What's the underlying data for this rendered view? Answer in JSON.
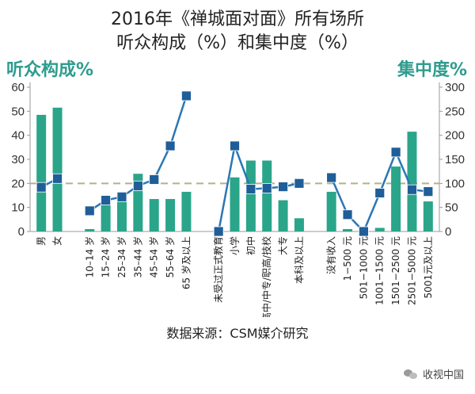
{
  "title_line1": "2016年《禅城面对面》所有场所",
  "title_line2": "听众构成（%）和集中度（%）",
  "left_axis_title": "听众构成%",
  "right_axis_title": "集中度%",
  "source": "数据来源：CSM媒介研究",
  "watermark": "收视中国",
  "watermark_icon": "wechat-icon",
  "colors": {
    "bar": "#2aa58a",
    "line": "#2a77b5",
    "marker": "#1f5e98",
    "axis_title": "#2e9c8e",
    "reference": "#b5b08a"
  },
  "chart_data": {
    "type": "bar+line",
    "left_axis": {
      "ylim": [
        0,
        60
      ],
      "ticks": [
        0,
        10,
        20,
        30,
        40,
        50,
        60
      ]
    },
    "right_axis": {
      "ylim": [
        0,
        300
      ],
      "ticks": [
        0,
        50,
        100,
        150,
        200,
        250,
        300
      ]
    },
    "reference_line": {
      "axis": "right",
      "value": 100
    },
    "groups": [
      {
        "name": "gender",
        "categories": [
          "男",
          "女"
        ],
        "composition": [
          48.5,
          51.5
        ],
        "concentration": [
          92,
          110
        ]
      },
      {
        "name": "age",
        "categories": [
          "10–14 岁",
          "15–24 岁",
          "25–34 岁",
          "35–44 岁",
          "45–54 岁",
          "55–64 岁",
          "65 岁及以上"
        ],
        "composition": [
          1,
          11,
          15,
          24,
          13.5,
          13.5,
          16.5
        ],
        "concentration": [
          43,
          65,
          72,
          95,
          108,
          178,
          282
        ]
      },
      {
        "name": "education",
        "categories": [
          "未受过正式教育",
          "小学",
          "初中",
          "高中/中专/职高/技校",
          "大专",
          "本科及以上"
        ],
        "composition": [
          0,
          22.5,
          29.5,
          29.5,
          13,
          5.5
        ],
        "concentration": [
          0,
          178,
          88,
          90,
          93,
          100
        ]
      },
      {
        "name": "income",
        "categories": [
          "没有收入",
          "1−500 元",
          "501−1000 元",
          "1001−1500 元",
          "1501−2500 元",
          "2501−5000 元",
          "5001元及以上"
        ],
        "composition": [
          16.5,
          1,
          0,
          1.5,
          27,
          41.5,
          12.5
        ],
        "concentration": [
          112,
          35,
          0,
          80,
          165,
          87,
          83
        ]
      }
    ]
  }
}
